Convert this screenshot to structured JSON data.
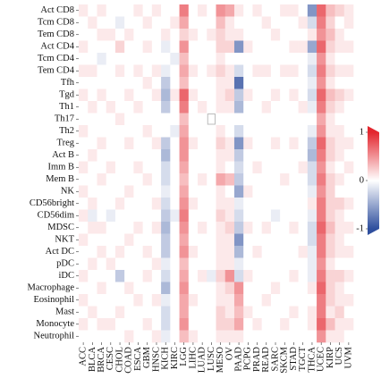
{
  "chart_data": {
    "type": "heatmap",
    "x_categories": [
      "ACC",
      "BLCA",
      "BRCA",
      "CESC",
      "CHOL",
      "COAD",
      "ESCA",
      "GBM",
      "HNSC",
      "KICH",
      "KIRC",
      "LGG",
      "LIHC",
      "LUAD",
      "LUSC",
      "MESO",
      "OV",
      "PAAD",
      "PCPG",
      "PRAD",
      "READ",
      "SARC",
      "SKCM",
      "STAD",
      "TGCT",
      "THCA",
      "UCEC",
      "KIRP",
      "UCS",
      "UVM"
    ],
    "y_categories": [
      "Act CD8",
      "Tcm CD8",
      "Tem CD8",
      "Act CD4",
      "Tcm CD4",
      "Tem CD4",
      "Tfh",
      "Tgd",
      "Th1",
      "Th17",
      "Th2",
      "Treg",
      "Act B",
      "Imm B",
      "Mem B",
      "NK",
      "CD56bright",
      "CD56dim",
      "MDSC",
      "NKT",
      "Act DC",
      "pDC",
      "iDC",
      "Macrophage",
      "Eosinophil",
      "Mast",
      "Monocyte",
      "Neutrophil"
    ],
    "values": [
      [
        0.1,
        0,
        0.1,
        0,
        0,
        0,
        0.1,
        0,
        0.1,
        0,
        0,
        0.6,
        0,
        0.1,
        0,
        0.5,
        0.4,
        0.1,
        0,
        0.1,
        0,
        0,
        0.1,
        0.1,
        0,
        -0.6,
        0.7,
        0.3,
        0.2,
        0.1
      ],
      [
        0,
        0.1,
        0,
        0,
        -0.1,
        0,
        0,
        0.1,
        0,
        0,
        0.1,
        0.4,
        0,
        0,
        0,
        0.3,
        0.1,
        0,
        0,
        0,
        0.1,
        0,
        0,
        0,
        0.1,
        -0.2,
        0.6,
        0.2,
        0,
        0.1
      ],
      [
        0,
        0,
        0.1,
        0.1,
        0,
        0.1,
        0,
        0,
        0,
        0.1,
        0,
        0.2,
        0.1,
        0,
        0.1,
        0.2,
        0.1,
        0.1,
        0,
        0,
        0,
        0.1,
        0,
        0,
        0,
        0.1,
        0.5,
        0.3,
        0.1,
        0
      ],
      [
        0.1,
        0,
        0,
        0,
        0.2,
        0,
        0,
        0.1,
        0,
        -0.1,
        0,
        0.5,
        0,
        0,
        0,
        0.2,
        0.2,
        -0.6,
        0.1,
        0,
        0,
        0,
        0,
        0.1,
        0.1,
        -0.5,
        0.7,
        0.2,
        0.1,
        0.1
      ],
      [
        0,
        0,
        -0.1,
        0,
        0,
        0,
        0,
        0,
        0,
        0,
        -0.1,
        0.3,
        0,
        0,
        0,
        0.1,
        0,
        0,
        0,
        0,
        0,
        0,
        0,
        0,
        0,
        -0.1,
        0.5,
        0.1,
        0,
        0
      ],
      [
        0.1,
        0.1,
        0,
        0,
        0.1,
        0,
        0.1,
        0,
        0.1,
        -0.1,
        0,
        0.4,
        0.1,
        0,
        0.1,
        0.2,
        0.1,
        -0.2,
        0,
        0.1,
        0.1,
        0,
        0.1,
        0.1,
        0,
        -0.2,
        0.6,
        0.2,
        0.1,
        0.1
      ],
      [
        0,
        0,
        0,
        0,
        0,
        0,
        0,
        0.1,
        0,
        -0.3,
        0,
        0.3,
        0,
        0,
        0,
        0.1,
        0.1,
        -0.8,
        0,
        0,
        0,
        0,
        0,
        0,
        0,
        -0.1,
        0.5,
        0.1,
        0,
        0
      ],
      [
        0.1,
        0,
        0.1,
        0,
        0,
        0.1,
        0,
        0,
        0.1,
        -0.4,
        0.1,
        0.7,
        0.1,
        0,
        0,
        0.1,
        0.2,
        -0.3,
        0.1,
        0,
        0,
        0.1,
        0,
        0.1,
        0,
        -0.2,
        0.7,
        0.3,
        0.2,
        0.1
      ],
      [
        0,
        0.1,
        0,
        0.1,
        0,
        0,
        0.1,
        0,
        0,
        -0.3,
        0,
        0.6,
        0,
        0.1,
        0,
        0.1,
        0.1,
        -0.4,
        0,
        0,
        0.1,
        0,
        0,
        0,
        0.1,
        -0.1,
        0.6,
        0.2,
        0.1,
        0
      ],
      [
        0,
        0,
        0,
        0,
        0.1,
        0,
        0,
        0,
        0,
        0,
        0,
        0.3,
        0,
        0,
        null,
        0,
        0,
        0,
        0,
        0,
        0,
        0,
        0,
        0,
        0,
        0,
        0.4,
        0.1,
        0,
        0
      ],
      [
        0.1,
        0,
        0,
        0,
        0,
        0,
        0,
        0.1,
        0,
        0,
        -0.1,
        0.4,
        0,
        0,
        0,
        0.1,
        0,
        -0.2,
        0,
        0,
        0,
        0,
        0,
        0,
        0,
        -0.1,
        0.5,
        0.1,
        0.1,
        0
      ],
      [
        0,
        0,
        0.1,
        0,
        0,
        0.1,
        0,
        0,
        0.1,
        -0.3,
        0,
        0.5,
        0.1,
        0,
        0,
        0.2,
        0.1,
        -0.6,
        0.1,
        0,
        0,
        0.1,
        0,
        0.1,
        0,
        -0.3,
        0.7,
        0.2,
        0.1,
        0.1
      ],
      [
        0,
        0.1,
        0,
        0,
        0,
        0,
        0,
        0,
        0,
        -0.4,
        0,
        0.5,
        0,
        0,
        0,
        0.1,
        0.1,
        -0.3,
        0,
        0,
        0,
        0,
        0,
        0,
        0,
        -0.4,
        0.6,
        0.2,
        0.1,
        0
      ],
      [
        0.1,
        0,
        0,
        0.1,
        0,
        0,
        0.1,
        0,
        0,
        -0.2,
        0,
        0.4,
        0,
        0,
        0,
        0.1,
        0,
        -0.2,
        0,
        0.1,
        0,
        0,
        0,
        0,
        0.1,
        -0.2,
        0.5,
        0.1,
        0,
        0.1
      ],
      [
        0,
        0,
        0.1,
        0,
        0,
        0,
        0,
        0.1,
        0,
        -0.2,
        0,
        0.3,
        0,
        0.1,
        0,
        0.4,
        0.3,
        -0.3,
        0,
        0,
        0,
        0,
        0.1,
        0,
        0,
        -0.2,
        0.6,
        0.2,
        0.1,
        0
      ],
      [
        0.1,
        0,
        0,
        0,
        0,
        0.1,
        0,
        0,
        0,
        -0.1,
        0,
        0.4,
        0,
        0,
        0,
        0.1,
        0,
        -0.5,
        0.1,
        0,
        0,
        0,
        0,
        0,
        0,
        -0.1,
        0.5,
        0.2,
        0,
        0
      ],
      [
        0,
        0.1,
        0,
        0,
        0.1,
        0,
        0,
        0,
        0.1,
        -0.2,
        0,
        0.5,
        0.1,
        0,
        0,
        0.1,
        0.1,
        -0.1,
        0,
        0,
        0,
        0,
        0,
        0,
        0,
        0.1,
        0.6,
        0.2,
        0.2,
        0.1
      ],
      [
        0.1,
        -0.1,
        0,
        -0.1,
        0,
        0,
        0,
        0,
        0,
        -0.3,
        -0.1,
        0.6,
        0,
        0,
        0,
        0.2,
        0.1,
        -0.2,
        0,
        0,
        0,
        -0.1,
        0,
        0,
        0,
        -0.1,
        0.6,
        0.2,
        0.1,
        0
      ],
      [
        0,
        0.1,
        0.1,
        0,
        0,
        0,
        0.1,
        0,
        0.1,
        -0.4,
        0,
        0.5,
        0,
        0.1,
        0,
        0.1,
        0.2,
        -0.3,
        0.1,
        0,
        0.1,
        0,
        0,
        0.1,
        0,
        -0.2,
        0.7,
        0.3,
        0.1,
        0.1
      ],
      [
        0.1,
        0,
        0,
        0,
        0,
        0.1,
        0,
        0,
        0,
        -0.3,
        0,
        0.4,
        0,
        0,
        0,
        0.1,
        0.1,
        -0.6,
        0,
        0,
        0,
        0,
        0,
        0,
        0,
        -0.2,
        0.6,
        0.2,
        0.1,
        0
      ],
      [
        0,
        0,
        0.1,
        0,
        0.1,
        0,
        0,
        0.1,
        0,
        -0.3,
        0,
        0.5,
        0.1,
        0,
        0,
        0.1,
        0.1,
        -0.4,
        0,
        0.1,
        0,
        0,
        0,
        0,
        0.1,
        -0.1,
        0.6,
        0.2,
        0.1,
        0.1
      ],
      [
        0,
        0.1,
        0,
        0.1,
        0,
        0,
        0,
        0,
        0.1,
        -0.1,
        0,
        0.3,
        0,
        0,
        0,
        0.1,
        0.1,
        -0.1,
        0,
        0,
        0,
        0,
        0,
        0,
        0,
        -0.1,
        0.5,
        0.1,
        0,
        0
      ],
      [
        0.1,
        0,
        0,
        0,
        -0.3,
        0,
        0,
        0.1,
        0,
        -0.2,
        0,
        0.4,
        0,
        0.1,
        -0.1,
        0.2,
        0.5,
        -0.2,
        0.1,
        0,
        0,
        0,
        0,
        0.1,
        0,
        -0.1,
        0.6,
        0.2,
        0.2,
        0.1
      ],
      [
        0,
        0,
        0.1,
        0,
        0,
        0.1,
        0,
        0,
        0,
        -0.4,
        0,
        0.5,
        0,
        0,
        0,
        0.1,
        0.2,
        0.5,
        0,
        0,
        0,
        0.1,
        0,
        0,
        0,
        0.1,
        0.7,
        0.2,
        0.1,
        0
      ],
      [
        0.1,
        0,
        0,
        0,
        0,
        0,
        0.1,
        0,
        0.1,
        -0.1,
        0,
        0.4,
        0.1,
        0,
        0,
        0.1,
        0.1,
        0.4,
        0,
        0,
        0.1,
        0,
        0,
        0,
        0,
        0,
        0.6,
        0.2,
        0.1,
        0.1
      ],
      [
        0,
        0.1,
        0,
        0,
        0.1,
        0,
        0,
        0,
        0,
        -0.2,
        0,
        0.4,
        0,
        0,
        0,
        0.2,
        0.1,
        0.3,
        0.1,
        0,
        0,
        0,
        0,
        0.1,
        0,
        0.1,
        0.6,
        0.1,
        0.2,
        0
      ],
      [
        0.1,
        0,
        0.1,
        0.1,
        0,
        0,
        0,
        0.1,
        0,
        -0.2,
        0,
        0.5,
        0,
        0,
        0,
        0.2,
        0.2,
        0.4,
        0,
        0.1,
        0,
        0,
        0.1,
        0,
        0,
        0.1,
        0.7,
        0.3,
        0.1,
        0.1
      ],
      [
        0,
        0,
        0,
        0,
        0,
        0.1,
        0,
        0,
        0.1,
        -0.1,
        0,
        0.3,
        0.1,
        0,
        0,
        0.1,
        0.1,
        0.1,
        0,
        0,
        0,
        0,
        0,
        0,
        0,
        0,
        0.5,
        0.1,
        0.1,
        0
      ]
    ],
    "clim": [
      -1,
      1
    ],
    "colorbar_ticks": [
      1,
      0,
      -1
    ],
    "colormap": [
      "#2f4f9e",
      "#ffffff",
      "#e3262e"
    ]
  }
}
